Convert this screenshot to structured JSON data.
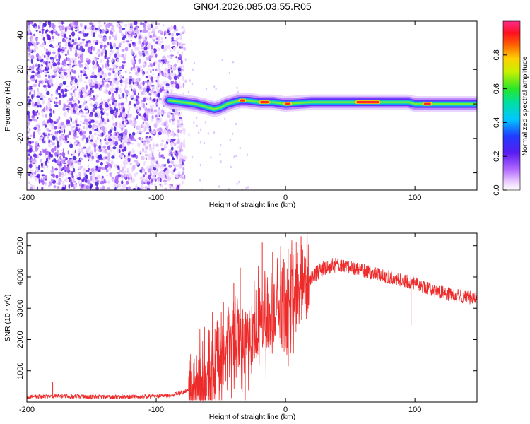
{
  "figure": {
    "title": "GN04.2026.085.03.55.R05"
  },
  "chart_data": [
    {
      "type": "heatmap",
      "name": "spectrogram",
      "xlabel": "Height of straight line (km)",
      "ylabel": "Frequency (Hz)",
      "xlim": [
        -200,
        148
      ],
      "ylim": [
        -50,
        48
      ],
      "x_ticks": [
        -200,
        -100,
        0,
        100
      ],
      "y_ticks": [
        40,
        20,
        0,
        -20,
        -40
      ],
      "noise_region_x": [
        -200,
        -78
      ],
      "signal_track": [
        {
          "x": -90,
          "y": 2
        },
        {
          "x": -80,
          "y": 1
        },
        {
          "x": -70,
          "y": 0
        },
        {
          "x": -60,
          "y": -2
        },
        {
          "x": -55,
          "y": -3
        },
        {
          "x": -50,
          "y": -2
        },
        {
          "x": -45,
          "y": 0
        },
        {
          "x": -40,
          "y": 1
        },
        {
          "x": -35,
          "y": 2
        },
        {
          "x": -30,
          "y": 2
        },
        {
          "x": -20,
          "y": 1
        },
        {
          "x": -10,
          "y": 1
        },
        {
          "x": 0,
          "y": 0
        },
        {
          "x": 20,
          "y": 1
        },
        {
          "x": 60,
          "y": 1
        },
        {
          "x": 95,
          "y": 1
        },
        {
          "x": 100,
          "y": 0
        },
        {
          "x": 110,
          "y": 0
        },
        {
          "x": 148,
          "y": 0
        }
      ],
      "colorbar": {
        "label": "Normalized spectral amplitude",
        "range": [
          0,
          1
        ],
        "ticks": [
          "0.0",
          "0.2",
          "0.4",
          "0.6",
          "0.8"
        ],
        "colormap": "rainbow (white-purple-blue-cyan-green-yellow-red-magenta)"
      }
    },
    {
      "type": "line",
      "name": "snr",
      "xlabel": "Height of straight line (km)",
      "ylabel": "SNR (10 * v/v)",
      "xlim": [
        -200,
        148
      ],
      "ylim": [
        0,
        5400
      ],
      "x_ticks": [
        -200,
        -100,
        0,
        100
      ],
      "y_ticks": [
        1000,
        2000,
        3000,
        4000,
        5000
      ],
      "series": [
        {
          "name": "SNR",
          "color": "#ee2b2b",
          "points": [
            {
              "x": -200,
              "y": 150
            },
            {
              "x": -180,
              "y": 200
            },
            {
              "x": -150,
              "y": 170
            },
            {
              "x": -120,
              "y": 160
            },
            {
              "x": -90,
              "y": 200
            },
            {
              "x": -80,
              "y": 300
            },
            {
              "x": -70,
              "y": 500
            },
            {
              "x": -60,
              "y": 900
            },
            {
              "x": -50,
              "y": 1500
            },
            {
              "x": -40,
              "y": 2100
            },
            {
              "x": -30,
              "y": 1800
            },
            {
              "x": -20,
              "y": 2500
            },
            {
              "x": -10,
              "y": 2800
            },
            {
              "x": 0,
              "y": 3000
            },
            {
              "x": 10,
              "y": 3500
            },
            {
              "x": 20,
              "y": 4000
            },
            {
              "x": 30,
              "y": 4300
            },
            {
              "x": 40,
              "y": 4400
            },
            {
              "x": 60,
              "y": 4200
            },
            {
              "x": 80,
              "y": 4000
            },
            {
              "x": 100,
              "y": 3800
            },
            {
              "x": 120,
              "y": 3500
            },
            {
              "x": 148,
              "y": 3300
            }
          ],
          "spikes": [
            {
              "x": -180,
              "y": 650
            },
            {
              "x": -48,
              "y": 3200
            },
            {
              "x": -40,
              "y": 3800
            },
            {
              "x": -35,
              "y": 4300
            },
            {
              "x": -18,
              "y": 5100
            },
            {
              "x": -10,
              "y": 4800
            },
            {
              "x": 2,
              "y": 4900
            },
            {
              "x": 12,
              "y": 5300
            },
            {
              "x": 97,
              "y": 2450
            }
          ]
        }
      ]
    }
  ]
}
